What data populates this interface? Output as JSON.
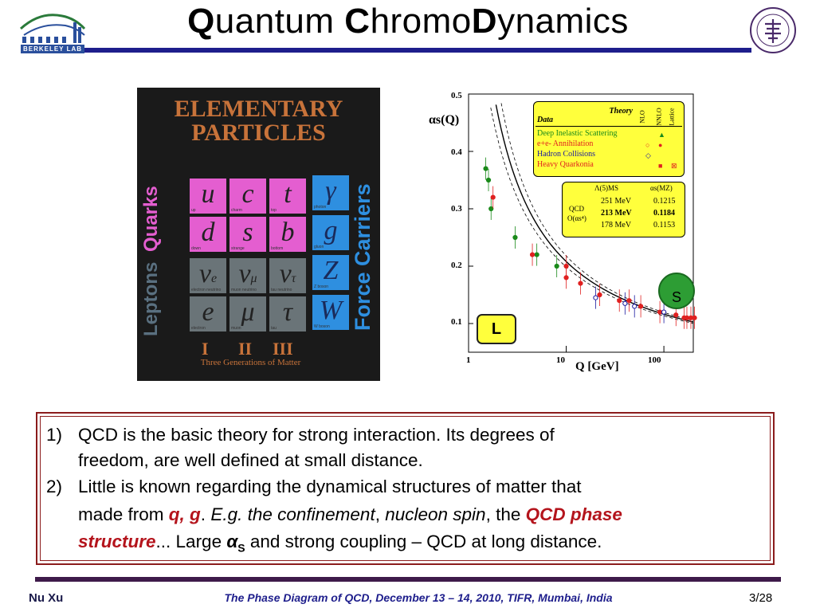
{
  "header": {
    "title_q": "Q",
    "title_uantum": "uantum ",
    "title_c": "C",
    "title_hromo": "hromo",
    "title_d": "D",
    "title_ynamics": "ynamics",
    "berkeley_logo_text": "BERKELEY LAB"
  },
  "particles": {
    "title_line1": "ELEMENTARY",
    "title_line2": "PARTICLES",
    "quarks_label": "Quarks",
    "leptons_label": "Leptons",
    "force_label": "Force Carriers",
    "quarks": [
      {
        "symbol": "u",
        "name": "up"
      },
      {
        "symbol": "c",
        "name": "charm"
      },
      {
        "symbol": "t",
        "name": "top"
      },
      {
        "symbol": "d",
        "name": "down"
      },
      {
        "symbol": "s",
        "name": "strange"
      },
      {
        "symbol": "b",
        "name": "bottom"
      }
    ],
    "leptons": [
      {
        "symbol": "ν",
        "sub": "e",
        "name": "electron neutrino"
      },
      {
        "symbol": "ν",
        "sub": "μ",
        "name": "muon neutrino"
      },
      {
        "symbol": "ν",
        "sub": "τ",
        "name": "tau neutrino"
      },
      {
        "symbol": "e",
        "name": "electron"
      },
      {
        "symbol": "μ",
        "name": "muon"
      },
      {
        "symbol": "τ",
        "name": "tau"
      }
    ],
    "forces": [
      {
        "symbol": "γ",
        "name": "photon"
      },
      {
        "symbol": "g",
        "name": "gluon"
      },
      {
        "symbol": "Z",
        "name": "Z boson"
      },
      {
        "symbol": "W",
        "name": "W boson"
      }
    ],
    "generations": [
      "I",
      "II",
      "III"
    ],
    "generation_caption": "Three Generations of Matter"
  },
  "chart_data": {
    "type": "scatter",
    "title": "",
    "xlabel": "Q [GeV]",
    "ylabel": "αs(Q)",
    "xscale": "log",
    "xlim": [
      1,
      200
    ],
    "ylim": [
      0.05,
      0.5
    ],
    "x_ticks": [
      "1",
      "10",
      "100"
    ],
    "y_ticks": [
      "0.1",
      "0.2",
      "0.3",
      "0.4",
      "0.5"
    ],
    "legend": {
      "header_theory": "Theory",
      "header_data": "Data",
      "columns": [
        "NLO",
        "NNLO",
        "Lattice"
      ],
      "rows": [
        {
          "label": "Deep Inelastic Scattering",
          "color": "#1a8a1a"
        },
        {
          "label": "e+e- Annihilation",
          "color": "#e02020"
        },
        {
          "label": "Hadron Collisions",
          "color": "#1a1aa0"
        },
        {
          "label": "Heavy Quarkonia",
          "color": "#e02020"
        }
      ]
    },
    "qcd_box": {
      "header_left": "Λ(5)MS",
      "header_right": "αs(MZ)",
      "qcd_label": "QCD",
      "order_label": "O(αs⁴)",
      "rows": [
        {
          "lambda": "251 MeV",
          "alpha": "0.1215"
        },
        {
          "lambda": "213 MeV",
          "alpha": "0.1184"
        },
        {
          "lambda": "178 MeV",
          "alpha": "0.1153"
        }
      ]
    },
    "series": [
      {
        "name": "Deep Inelastic Scattering",
        "color": "#1a8a1a",
        "points": [
          [
            1.5,
            0.37
          ],
          [
            1.6,
            0.35
          ],
          [
            1.7,
            0.3
          ],
          [
            3.0,
            0.25
          ],
          [
            5.0,
            0.22
          ],
          [
            8.0,
            0.2
          ]
        ]
      },
      {
        "name": "e+e- Annihilation",
        "color": "#e02020",
        "points": [
          [
            1.78,
            0.32
          ],
          [
            10,
            0.2
          ],
          [
            14,
            0.17
          ],
          [
            22,
            0.15
          ],
          [
            35,
            0.14
          ],
          [
            44,
            0.14
          ],
          [
            58,
            0.13
          ],
          [
            91,
            0.12
          ],
          [
            133,
            0.115
          ],
          [
            161,
            0.11
          ],
          [
            172,
            0.11
          ],
          [
            189,
            0.11
          ],
          [
            206,
            0.11
          ]
        ]
      },
      {
        "name": "Hadron Collisions",
        "color": "#1a1aa0",
        "points": [
          [
            20,
            0.145
          ],
          [
            40,
            0.135
          ],
          [
            50,
            0.13
          ],
          [
            100,
            0.12
          ]
        ]
      },
      {
        "name": "Heavy Quarkonia",
        "color": "#e02020",
        "points": [
          [
            4.5,
            0.22
          ],
          [
            10,
            0.18
          ]
        ]
      }
    ],
    "badges": {
      "s": "S",
      "l": "L"
    }
  },
  "text": {
    "n1": "1)",
    "line1": "QCD is the basic theory for strong interaction. Its degrees of",
    "line2": "freedom, are well defined at small distance.",
    "n2": "2)",
    "line3": "Little is known regarding the dynamical structures of matter that",
    "line4_a": "made from ",
    "line4_b": "q, g",
    "line4_c": ". ",
    "line4_d": "E.g. the confinement",
    "line4_e": ", ",
    "line4_f": "nucleon spin",
    "line4_g": ", the ",
    "line4_h": "QCD phase",
    "line5_a": "structure",
    "line5_b": "...  Large ",
    "line5_c": "α",
    "line5_d": "S",
    "line5_e": " and strong coupling – QCD at long distance."
  },
  "footer": {
    "author": "Nu Xu",
    "event": "The Phase Diagram of QCD, December 13 – 14, 2010, TIFR, Mumbai, India",
    "page": "3/28"
  }
}
